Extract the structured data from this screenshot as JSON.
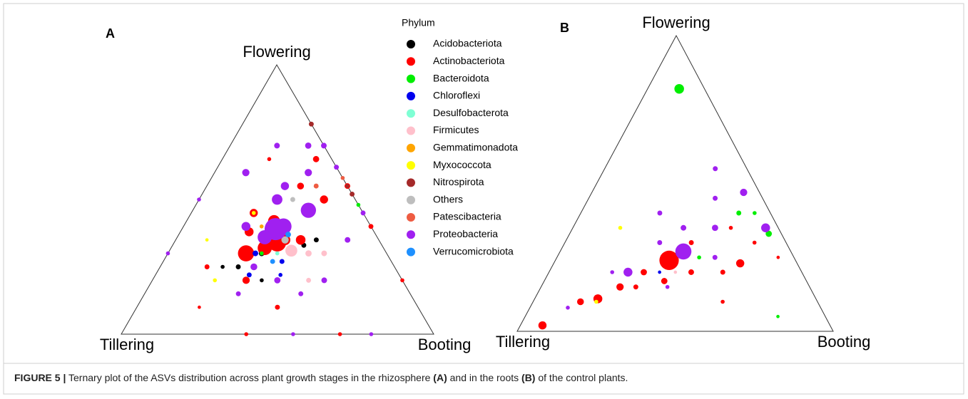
{
  "figure_label": "FIGURE 5 |",
  "caption": [
    "Ternary plot of the ASVs distribution across plant growth stages in the rhizosphere ",
    "(A)",
    " and in the roots ",
    "(B)",
    " of the control plants."
  ],
  "chart_data": [
    {
      "type": "ternary",
      "panel": "A",
      "vertices": {
        "top": "Flowering",
        "left": "Tillering",
        "right": "Booting"
      },
      "legend": {
        "title": "Phylum"
      },
      "series": [
        {
          "name": "Acidobacteriota",
          "color": "#000000",
          "points": [
            [
              40,
              30,
              30,
              3
            ],
            [
              30,
              35,
              35,
              2
            ],
            [
              50,
              25,
              25,
              2
            ],
            [
              25,
              42,
              33,
              2
            ],
            [
              45,
              35,
              20,
              1
            ],
            [
              35,
              30,
              35,
              2
            ],
            [
              20,
              45,
              35,
              2
            ],
            [
              55,
              20,
              25,
              1
            ]
          ]
        },
        {
          "name": "Actinobacteriota",
          "color": "#ff0000",
          "points": [
            [
              45,
              25,
              30,
              40
            ],
            [
              33,
              33,
              34,
              50
            ],
            [
              38,
              30,
              32,
              30
            ],
            [
              30,
              28,
              42,
              20
            ],
            [
              40,
              22,
              38,
              10
            ],
            [
              35,
              20,
              45,
              8
            ],
            [
              10,
              40,
              50,
              8
            ],
            [
              0,
              45,
              55,
              3
            ],
            [
              5,
              30,
              65,
              4
            ],
            [
              15,
              30,
              55,
              5
            ],
            [
              50,
              30,
              20,
              6
            ],
            [
              25,
              40,
              35,
              12
            ],
            [
              60,
              15,
              25,
              2
            ],
            [
              45,
              45,
              10,
              2
            ],
            [
              0,
              60,
              40,
              2
            ],
            [
              0,
              80,
              20,
              1
            ],
            [
              30,
              70,
              0,
              1
            ],
            [
              60,
              40,
              0,
              1
            ],
            [
              70,
              20,
              10,
              0.5
            ],
            [
              20,
              15,
              65,
              1
            ],
            [
              30,
              35,
              35,
              15
            ]
          ]
        },
        {
          "name": "Bacteroidota",
          "color": "#00ee00",
          "points": [
            [
              40,
              30,
              30,
              1
            ],
            [
              30,
              40,
              30,
              1
            ],
            [
              0,
              52,
              48,
              1
            ],
            [
              55,
              30,
              15,
              0.5
            ],
            [
              25,
              45,
              30,
              1
            ]
          ]
        },
        {
          "name": "Chloroflexi",
          "color": "#0000ee",
          "points": [
            [
              42,
              28,
              30,
              3
            ],
            [
              35,
              38,
              27,
              2
            ],
            [
              48,
              30,
              22,
              2
            ],
            [
              38,
              40,
              22,
              1
            ]
          ]
        },
        {
          "name": "Desulfobacterota",
          "color": "#7fffd4",
          "points": [
            [
              35,
              35,
              30,
              1
            ]
          ]
        },
        {
          "name": "Firmicutes",
          "color": "#ffc0cb",
          "points": [
            [
              30,
              39,
              31,
              20
            ],
            [
              25,
              45,
              30,
              4
            ],
            [
              20,
              50,
              30,
              3
            ],
            [
              30,
              50,
              20,
              2
            ]
          ]
        },
        {
          "name": "Gemmatimonadota",
          "color": "#ffa500",
          "points": [
            [
              45,
              30,
              25,
              1
            ],
            [
              35,
              25,
              40,
              1
            ]
          ]
        },
        {
          "name": "Myxococcota",
          "color": "#ffff00",
          "points": [
            [
              35,
              20,
              45,
              1
            ],
            [
              60,
              20,
              20,
              1
            ],
            [
              55,
              10,
              35,
              0.5
            ]
          ]
        },
        {
          "name": "Nitrospirota",
          "color": "#a52a2a",
          "points": [
            [
              0,
              22,
              78,
              2
            ],
            [
              0,
              48,
              52,
              2
            ],
            [
              0,
              45,
              55,
              1
            ]
          ]
        },
        {
          "name": "Others",
          "color": "#bebebe",
          "points": [
            [
              30,
              35,
              35,
              6
            ],
            [
              20,
              30,
              50,
              2
            ]
          ]
        },
        {
          "name": "Patescibacteria",
          "color": "#ee5c42",
          "points": [
            [
              0,
              42,
              58,
              1
            ],
            [
              10,
              35,
              55,
              2
            ]
          ]
        },
        {
          "name": "Proteobacteria",
          "color": "#a020f0",
          "points": [
            [
              31,
              30,
              39,
              80
            ],
            [
              17,
              37,
              46,
              35
            ],
            [
              28,
              32,
              40,
              40
            ],
            [
              36,
              28,
              36,
              30
            ],
            [
              25,
              25,
              50,
              15
            ],
            [
              30,
              10,
              60,
              6
            ],
            [
              15,
              15,
              70,
              3
            ],
            [
              10,
              30,
              60,
              6
            ],
            [
              0,
              30,
              70,
              3
            ],
            [
              0,
              38,
              62,
              2
            ],
            [
              20,
              25,
              55,
              8
            ],
            [
              5,
              25,
              70,
              4
            ],
            [
              45,
              30,
              25,
              5
            ],
            [
              40,
              40,
              20,
              4
            ],
            [
              55,
              30,
              15,
              2
            ],
            [
              25,
              55,
              20,
              3
            ],
            [
              35,
              50,
              15,
              2
            ],
            [
              0,
              55,
              45,
              2
            ],
            [
              50,
              0,
              50,
              1
            ],
            [
              70,
              0,
              30,
              1
            ],
            [
              45,
              55,
              0,
              1
            ],
            [
              20,
              80,
              0,
              1
            ],
            [
              10,
              55,
              35,
              3
            ],
            [
              40,
              20,
              40,
              10
            ]
          ]
        },
        {
          "name": "Verrucomicrobiota",
          "color": "#1e90ff",
          "points": [
            [
              38,
              35,
              27,
              2
            ],
            [
              28,
              35,
              37,
              3
            ]
          ]
        }
      ]
    },
    {
      "type": "ternary",
      "panel": "B",
      "vertices": {
        "top": "Flowering",
        "left": "Tillering",
        "right": "Booting"
      },
      "series": [
        {
          "color": "#000000",
          "points": []
        },
        {
          "color": "#ff0000",
          "points": [
            [
              40,
              36,
              24,
              60
            ],
            [
              91,
              7,
              2,
              8
            ],
            [
              69,
              20,
              11,
              10
            ],
            [
              18,
              59,
              23,
              8
            ],
            [
              60,
              25,
              15,
              6
            ],
            [
              75,
              15,
              10,
              5
            ],
            [
              50,
              30,
              20,
              4
            ],
            [
              45,
              38,
              17,
              4
            ],
            [
              35,
              45,
              20,
              3
            ],
            [
              30,
              40,
              30,
              2
            ],
            [
              55,
              30,
              15,
              2
            ],
            [
              25,
              55,
              20,
              2
            ],
            [
              20,
              45,
              35,
              1
            ],
            [
              15,
              50,
              35,
              1
            ],
            [
              30,
              60,
              10,
              1
            ],
            [
              10,
              60,
              30,
              1
            ],
            [
              5,
              70,
              25,
              0.5
            ]
          ]
        },
        {
          "color": "#00ee00",
          "points": [
            [
              8,
              10,
              82,
              12
            ],
            [
              4,
              63,
              33,
              4
            ],
            [
              10,
              50,
              40,
              2
            ],
            [
              5,
              55,
              40,
              1
            ],
            [
              30,
              45,
              25,
              1
            ],
            [
              15,
              80,
              5,
              0.5
            ]
          ]
        },
        {
          "color": "#0000ee",
          "points": [
            [
              35,
              40,
              25,
              0.5
            ],
            [
              45,
              35,
              20,
              0.5
            ]
          ]
        },
        {
          "color": "#7fffd4",
          "points": []
        },
        {
          "color": "#ffc0cb",
          "points": [
            [
              40,
              40,
              20,
              0.5
            ]
          ]
        },
        {
          "color": "#ffa500",
          "points": []
        },
        {
          "color": "#ffff00",
          "points": [
            [
              70,
              20,
              10,
              1
            ],
            [
              50,
              15,
              35,
              1
            ]
          ]
        },
        {
          "color": "#a52a2a",
          "points": []
        },
        {
          "color": "#bebebe",
          "points": []
        },
        {
          "color": "#ee5c42",
          "points": []
        },
        {
          "color": "#a020f0",
          "points": [
            [
              34,
              39,
              27,
              40
            ],
            [
              4,
              61,
              35,
              10
            ],
            [
              5,
              48,
              47,
              6
            ],
            [
              55,
              25,
              20,
              10
            ],
            [
              20,
              45,
              35,
              4
            ],
            [
              30,
              35,
              35,
              3
            ],
            [
              40,
              30,
              30,
              2
            ],
            [
              25,
              50,
              25,
              2
            ],
            [
              60,
              20,
              20,
              1
            ],
            [
              15,
              40,
              45,
              2
            ],
            [
              35,
              25,
              40,
              2
            ],
            [
              45,
              40,
              15,
              1
            ],
            [
              80,
              12,
              8,
              1
            ],
            [
              10,
              35,
              55,
              2
            ]
          ]
        },
        {
          "color": "#1e90ff",
          "points": []
        }
      ]
    }
  ]
}
